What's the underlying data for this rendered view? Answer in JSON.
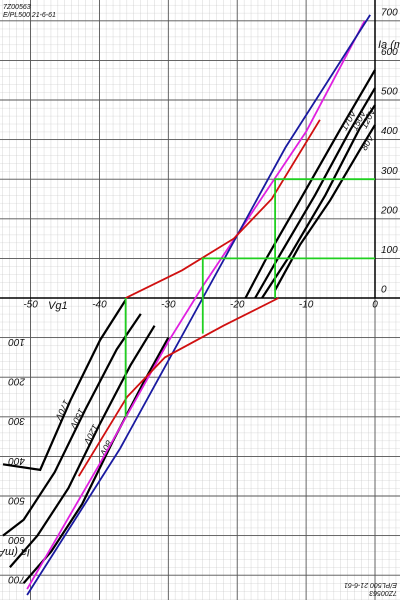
{
  "chart_data": {
    "type": "line",
    "annotations": [
      "7Z00563",
      "E/PL500 21-6-61"
    ],
    "y_label": "Ia (mA)",
    "x_label": "Vg1",
    "xlim": [
      -54,
      0
    ],
    "ylim": [
      -750,
      750
    ],
    "xticks": [
      -50,
      -40,
      -30,
      -20,
      -10,
      0
    ],
    "yticks": [
      0,
      100,
      200,
      300,
      400,
      500,
      600,
      700,
      {
        "value": -100,
        "label": "100"
      },
      {
        "value": -200,
        "label": "200"
      },
      {
        "value": -300,
        "label": "300"
      },
      {
        "value": -400,
        "label": "400"
      },
      {
        "value": -500,
        "label": "500"
      },
      {
        "value": -600,
        "label": "600"
      },
      {
        "value": -700,
        "label": "700"
      }
    ],
    "grid": true,
    "series": [
      {
        "name": "170V",
        "color": "#000000",
        "x": [
          -18.8,
          -15.9,
          -10.9,
          -5.1,
          0
        ],
        "values": [
          0,
          96,
          247,
          424,
          576
        ]
      },
      {
        "name": "150V",
        "color": "#000000",
        "x": [
          -17.4,
          -13.8,
          -8.7,
          -3.6,
          0
        ],
        "values": [
          0,
          109,
          260,
          424,
          530
        ]
      },
      {
        "name": "120V",
        "color": "#000000",
        "x": [
          -16.4,
          -12.3,
          -7.2,
          -2.2,
          0
        ],
        "values": [
          0,
          109,
          260,
          429,
          487
        ]
      },
      {
        "name": "80V",
        "color": "#000000",
        "x": [
          -14.5,
          -10.9,
          -6.5,
          -2.2,
          0
        ],
        "values": [
          20,
          134,
          247,
          374,
          437
        ]
      },
      {
        "name": "170V",
        "color": "#000000",
        "x": [
          -36.2,
          -39.9,
          -44.2,
          -48.6,
          -54
        ],
        "values": [
          -5,
          -106,
          -258,
          -434,
          -420
        ]
      },
      {
        "name": "150V",
        "color": "#000000",
        "x": [
          -34,
          -37.5,
          -42,
          -46.5,
          -51,
          -54
        ],
        "values": [
          -40,
          -130,
          -280,
          -440,
          -560,
          -600
        ]
      },
      {
        "name": "120V",
        "color": "#000000",
        "x": [
          -32,
          -35.5,
          -40,
          -44.5,
          -49,
          -53
        ],
        "values": [
          -70,
          -170,
          -320,
          -480,
          -600,
          -680
        ]
      },
      {
        "name": "80V",
        "color": "#000000",
        "x": [
          -30,
          -33.5,
          -38,
          -42.5,
          -47,
          -51
        ],
        "values": [
          -100,
          -210,
          -360,
          -520,
          -640,
          -720
        ]
      },
      {
        "color": "#e020e0",
        "x": [
          -50.5,
          -40,
          -30,
          -25,
          -20,
          -10,
          -1.5
        ],
        "values": [
          -735,
          -420,
          -110,
          30,
          160,
          420,
          700
        ]
      },
      {
        "color": "#1a1aa0",
        "x": [
          -50.5,
          -37,
          -25,
          -13,
          -0.7
        ],
        "values": [
          -750,
          -380,
          0,
          380,
          715
        ]
      },
      {
        "color": "#d01010",
        "x": [
          -36.2,
          -28,
          -20.5,
          -15,
          -8
        ],
        "values": [
          0,
          70,
          150,
          250,
          450
        ]
      },
      {
        "color": "#d01010",
        "x": [
          -14,
          -22,
          -30.5,
          -36,
          -43
        ],
        "values": [
          0,
          -70,
          -150,
          -250,
          -450
        ]
      },
      {
        "color": "#20d020",
        "x": [
          0,
          -14.5,
          -14.5
        ],
        "values": [
          300,
          300,
          0
        ]
      },
      {
        "color": "#20d020",
        "x": [
          0,
          -25,
          -25
        ],
        "values": [
          100,
          100,
          -90
        ]
      },
      {
        "color": "#20d020",
        "x": [
          -36.2,
          -36.2
        ],
        "values": [
          0,
          -300
        ]
      }
    ]
  }
}
